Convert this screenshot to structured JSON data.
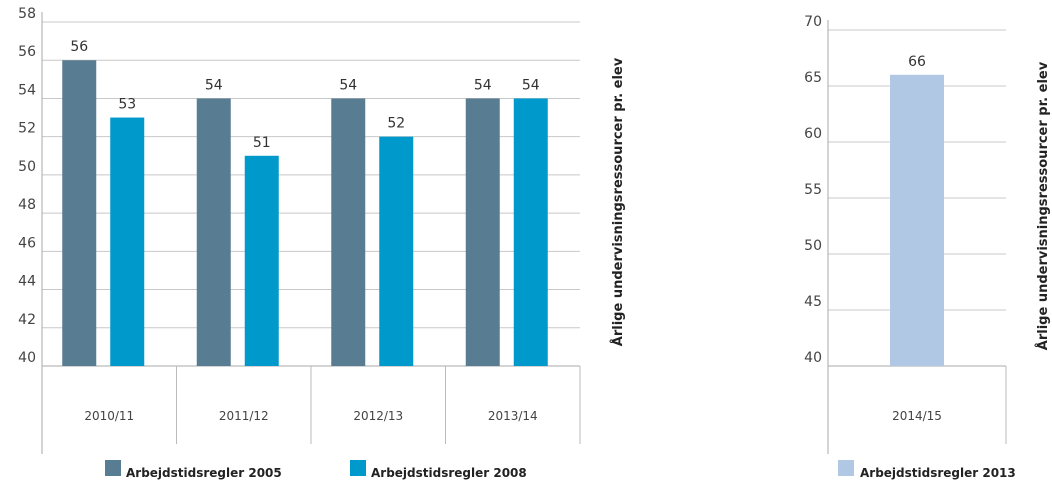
{
  "chart_data": [
    {
      "type": "bar",
      "categories": [
        "2010/11",
        "2011/12",
        "2012/13",
        "2013/14"
      ],
      "series": [
        {
          "name": "Arbejdstidsregler  2005",
          "values": [
            56,
            54,
            54,
            54
          ],
          "color": "#587d92"
        },
        {
          "name": "Arbejdstidsregler 2008",
          "values": [
            53,
            51,
            52,
            54
          ],
          "color": "#0099cc"
        }
      ],
      "data_labels": [
        [
          "56",
          "54",
          "54",
          "54"
        ],
        [
          "53",
          "51",
          "52",
          "54"
        ]
      ],
      "ylabel": "Årlige undervisningsressourcer pr. elev",
      "ylim": [
        40,
        58
      ],
      "yticks": [
        "40",
        "42",
        "44",
        "46",
        "48",
        "50",
        "52",
        "54",
        "56",
        "58"
      ],
      "grid": true,
      "legend": "bottom"
    },
    {
      "type": "bar",
      "categories": [
        "2014/15"
      ],
      "series": [
        {
          "name": "Arbejdstidsregler 2013",
          "values": [
            66
          ],
          "color": "#b0c8e4"
        }
      ],
      "data_labels": [
        [
          "66"
        ]
      ],
      "ylabel": "Årlige undervisningsressourcer pr. elev",
      "ylim": [
        40,
        70
      ],
      "yticks": [
        "40",
        "45",
        "50",
        "55",
        "60",
        "65",
        "70"
      ],
      "grid": true,
      "legend": "bottom"
    }
  ]
}
